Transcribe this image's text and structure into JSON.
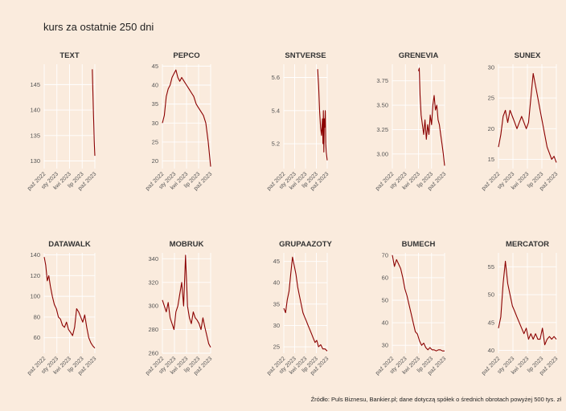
{
  "title": "kurs za ostatnie 250 dni",
  "caption": "Źródło: Puls Biznesu, Bankier.pl; dane dotyczą spółek o średnich obrotach powyżej 500 tys. zł",
  "colors": {
    "background": "#faebdd",
    "line": "#8b0000",
    "grid": "#ffffff"
  },
  "chart_data": [
    {
      "type": "line",
      "title": "TEXT",
      "ylim": [
        128.5,
        149
      ],
      "yticks": [
        130,
        135,
        140,
        145
      ],
      "ytick_labels": [
        "130",
        "135",
        "140",
        "145"
      ],
      "xticks": [
        "paź 2022",
        "sty 2023",
        "kwi 2023",
        "lip 2023",
        "paź 2023"
      ],
      "segment_x": [
        0.95,
        1.0
      ],
      "points": [
        [
          0,
          148
        ],
        [
          0.15,
          145
        ],
        [
          0.3,
          142
        ],
        [
          0.45,
          139
        ],
        [
          0.6,
          137
        ],
        [
          0.75,
          134
        ],
        [
          0.9,
          132
        ],
        [
          1.0,
          131
        ]
      ]
    },
    {
      "type": "line",
      "title": "PEPCO",
      "ylim": [
        18,
        45.5
      ],
      "yticks": [
        20,
        25,
        30,
        35,
        40,
        45
      ],
      "ytick_labels": [
        "20",
        "25",
        "30",
        "35",
        "40",
        "45"
      ],
      "xticks": [
        "paź 2022",
        "sty 2023",
        "kwi 2023",
        "lip 2023",
        "paź 2023"
      ],
      "segment_x": [
        0.0,
        1.0
      ],
      "points": [
        [
          0,
          30
        ],
        [
          0.04,
          32
        ],
        [
          0.08,
          37
        ],
        [
          0.12,
          39
        ],
        [
          0.16,
          40
        ],
        [
          0.2,
          42
        ],
        [
          0.24,
          43
        ],
        [
          0.28,
          44
        ],
        [
          0.32,
          42
        ],
        [
          0.36,
          41
        ],
        [
          0.4,
          42
        ],
        [
          0.45,
          41
        ],
        [
          0.5,
          40
        ],
        [
          0.55,
          39
        ],
        [
          0.6,
          38
        ],
        [
          0.65,
          37
        ],
        [
          0.7,
          35
        ],
        [
          0.75,
          34
        ],
        [
          0.8,
          33
        ],
        [
          0.85,
          32
        ],
        [
          0.9,
          30
        ],
        [
          0.95,
          25
        ],
        [
          1.0,
          18.5
        ]
      ]
    },
    {
      "type": "line",
      "title": "SNTVERSE",
      "ylim": [
        5.05,
        5.68
      ],
      "yticks": [
        5.2,
        5.4,
        5.6
      ],
      "ytick_labels": [
        "5.2",
        "5.4",
        "5.6"
      ],
      "xticks": [
        "paź 2022",
        "sty 2023",
        "kwi 2023",
        "lip 2023",
        "paź 2023"
      ],
      "segment_x": [
        0.78,
        1.0
      ],
      "points": [
        [
          0,
          5.65
        ],
        [
          0.1,
          5.55
        ],
        [
          0.2,
          5.4
        ],
        [
          0.3,
          5.3
        ],
        [
          0.4,
          5.25
        ],
        [
          0.5,
          5.35
        ],
        [
          0.55,
          5.2
        ],
        [
          0.6,
          5.4
        ],
        [
          0.65,
          5.15
        ],
        [
          0.7,
          5.35
        ],
        [
          0.75,
          5.3
        ],
        [
          0.8,
          5.4
        ],
        [
          0.85,
          5.2
        ],
        [
          0.9,
          5.15
        ],
        [
          1.0,
          5.1
        ]
      ]
    },
    {
      "type": "line",
      "title": "GRENEVIA",
      "ylim": [
        2.85,
        3.92
      ],
      "yticks": [
        3.0,
        3.25,
        3.5,
        3.75
      ],
      "ytick_labels": [
        "3.00",
        "3.25",
        "3.50",
        "3.75"
      ],
      "xticks": [
        "paź 2022",
        "sty 2023",
        "kwi 2023",
        "lip 2023",
        "paź 2023"
      ],
      "segment_x": [
        0.5,
        1.0
      ],
      "points": [
        [
          0,
          3.85
        ],
        [
          0.03,
          3.88
        ],
        [
          0.06,
          3.6
        ],
        [
          0.1,
          3.4
        ],
        [
          0.15,
          3.3
        ],
        [
          0.2,
          3.2
        ],
        [
          0.25,
          3.35
        ],
        [
          0.3,
          3.15
        ],
        [
          0.35,
          3.3
        ],
        [
          0.4,
          3.2
        ],
        [
          0.45,
          3.4
        ],
        [
          0.5,
          3.3
        ],
        [
          0.55,
          3.5
        ],
        [
          0.6,
          3.6
        ],
        [
          0.65,
          3.45
        ],
        [
          0.7,
          3.5
        ],
        [
          0.75,
          3.35
        ],
        [
          0.8,
          3.3
        ],
        [
          0.85,
          3.2
        ],
        [
          0.9,
          3.1
        ],
        [
          0.95,
          3.0
        ],
        [
          1.0,
          2.88
        ]
      ]
    },
    {
      "type": "line",
      "title": "SUNEX",
      "ylim": [
        13.5,
        30.5
      ],
      "yticks": [
        15,
        20,
        25,
        30
      ],
      "ytick_labels": [
        "15",
        "20",
        "25",
        "30"
      ],
      "xticks": [
        "paź 2022",
        "sty 2023",
        "kwi 2023",
        "lip 2023",
        "paź 2023"
      ],
      "segment_x": [
        0.0,
        1.0
      ],
      "points": [
        [
          0,
          17
        ],
        [
          0.04,
          19
        ],
        [
          0.08,
          22
        ],
        [
          0.12,
          23
        ],
        [
          0.16,
          21
        ],
        [
          0.2,
          23
        ],
        [
          0.24,
          22
        ],
        [
          0.28,
          21
        ],
        [
          0.32,
          20
        ],
        [
          0.36,
          21
        ],
        [
          0.4,
          22
        ],
        [
          0.44,
          21
        ],
        [
          0.48,
          20
        ],
        [
          0.52,
          21
        ],
        [
          0.56,
          25
        ],
        [
          0.6,
          29
        ],
        [
          0.64,
          27
        ],
        [
          0.68,
          25
        ],
        [
          0.72,
          23
        ],
        [
          0.76,
          21
        ],
        [
          0.8,
          19
        ],
        [
          0.84,
          17
        ],
        [
          0.88,
          16
        ],
        [
          0.92,
          15
        ],
        [
          0.96,
          15.5
        ],
        [
          1.0,
          14.5
        ]
      ]
    },
    {
      "type": "line",
      "title": "DATAWALK",
      "ylim": [
        45,
        142
      ],
      "yticks": [
        60,
        80,
        100,
        120,
        140
      ],
      "ytick_labels": [
        "60",
        "80",
        "100",
        "120",
        "140"
      ],
      "xticks": [
        "paź 2022",
        "sty 2023",
        "kwi 2023",
        "lip 2023",
        "paź 2023"
      ],
      "segment_x": [
        0.0,
        1.0
      ],
      "points": [
        [
          0,
          138
        ],
        [
          0.03,
          130
        ],
        [
          0.06,
          115
        ],
        [
          0.09,
          120
        ],
        [
          0.12,
          110
        ],
        [
          0.16,
          100
        ],
        [
          0.2,
          92
        ],
        [
          0.24,
          88
        ],
        [
          0.28,
          80
        ],
        [
          0.32,
          78
        ],
        [
          0.36,
          72
        ],
        [
          0.4,
          70
        ],
        [
          0.44,
          75
        ],
        [
          0.48,
          68
        ],
        [
          0.52,
          65
        ],
        [
          0.56,
          62
        ],
        [
          0.6,
          70
        ],
        [
          0.64,
          88
        ],
        [
          0.68,
          85
        ],
        [
          0.72,
          80
        ],
        [
          0.76,
          75
        ],
        [
          0.8,
          82
        ],
        [
          0.84,
          70
        ],
        [
          0.88,
          60
        ],
        [
          0.92,
          55
        ],
        [
          0.96,
          52
        ],
        [
          1.0,
          50
        ]
      ]
    },
    {
      "type": "line",
      "title": "MOBRUK",
      "ylim": [
        260,
        345
      ],
      "yticks": [
        260,
        280,
        300,
        320,
        340
      ],
      "ytick_labels": [
        "260",
        "280",
        "300",
        "320",
        "340"
      ],
      "xticks": [
        "paź 2022",
        "sty 2023",
        "kwi 2023",
        "lip 2023",
        "paź 2023"
      ],
      "segment_x": [
        0.0,
        1.0
      ],
      "points": [
        [
          0,
          305
        ],
        [
          0.04,
          300
        ],
        [
          0.08,
          295
        ],
        [
          0.12,
          303
        ],
        [
          0.16,
          290
        ],
        [
          0.2,
          285
        ],
        [
          0.24,
          280
        ],
        [
          0.28,
          295
        ],
        [
          0.32,
          300
        ],
        [
          0.36,
          310
        ],
        [
          0.4,
          320
        ],
        [
          0.44,
          300
        ],
        [
          0.48,
          343
        ],
        [
          0.52,
          300
        ],
        [
          0.56,
          290
        ],
        [
          0.6,
          285
        ],
        [
          0.64,
          295
        ],
        [
          0.68,
          290
        ],
        [
          0.72,
          288
        ],
        [
          0.76,
          285
        ],
        [
          0.8,
          280
        ],
        [
          0.84,
          290
        ],
        [
          0.88,
          282
        ],
        [
          0.92,
          275
        ],
        [
          0.96,
          268
        ],
        [
          1.0,
          265
        ]
      ]
    },
    {
      "type": "line",
      "title": "GRUPAAZOTY",
      "ylim": [
        23.5,
        47
      ],
      "yticks": [
        25,
        30,
        35,
        40,
        45
      ],
      "ytick_labels": [
        "25",
        "30",
        "35",
        "40",
        "45"
      ],
      "xticks": [
        "paź 2022",
        "sty 2023",
        "kwi 2023",
        "lip 2023",
        "paź 2023"
      ],
      "segment_x": [
        0.0,
        1.0
      ],
      "points": [
        [
          0,
          34
        ],
        [
          0.04,
          33
        ],
        [
          0.08,
          36
        ],
        [
          0.12,
          38
        ],
        [
          0.16,
          42
        ],
        [
          0.2,
          46
        ],
        [
          0.24,
          44
        ],
        [
          0.28,
          42
        ],
        [
          0.32,
          39
        ],
        [
          0.36,
          37
        ],
        [
          0.4,
          35
        ],
        [
          0.44,
          33
        ],
        [
          0.48,
          32
        ],
        [
          0.52,
          31
        ],
        [
          0.56,
          30
        ],
        [
          0.6,
          29
        ],
        [
          0.64,
          28
        ],
        [
          0.68,
          27
        ],
        [
          0.72,
          26
        ],
        [
          0.76,
          26.5
        ],
        [
          0.8,
          25
        ],
        [
          0.85,
          25.5
        ],
        [
          0.9,
          24.5
        ],
        [
          0.95,
          24.5
        ],
        [
          1.0,
          24
        ]
      ]
    },
    {
      "type": "line",
      "title": "BUMECH",
      "ylim": [
        26.5,
        71
      ],
      "yticks": [
        30,
        40,
        50,
        60,
        70
      ],
      "ytick_labels": [
        "30",
        "40",
        "50",
        "60",
        "70"
      ],
      "xticks": [
        "paź 2022",
        "sty 2023",
        "kwi 2023",
        "lip 2023",
        "paź 2023"
      ],
      "segment_x": [
        0.0,
        1.0
      ],
      "points": [
        [
          0,
          70
        ],
        [
          0.04,
          65
        ],
        [
          0.08,
          68
        ],
        [
          0.12,
          66
        ],
        [
          0.16,
          64
        ],
        [
          0.2,
          60
        ],
        [
          0.24,
          55
        ],
        [
          0.28,
          52
        ],
        [
          0.32,
          48
        ],
        [
          0.36,
          44
        ],
        [
          0.4,
          40
        ],
        [
          0.44,
          36
        ],
        [
          0.48,
          35
        ],
        [
          0.52,
          32
        ],
        [
          0.56,
          30
        ],
        [
          0.6,
          31
        ],
        [
          0.64,
          29
        ],
        [
          0.68,
          28
        ],
        [
          0.72,
          29
        ],
        [
          0.76,
          28
        ],
        [
          0.8,
          28
        ],
        [
          0.84,
          27.5
        ],
        [
          0.88,
          28
        ],
        [
          0.92,
          28
        ],
        [
          0.96,
          27.5
        ],
        [
          1.0,
          27.5
        ]
      ]
    },
    {
      "type": "line",
      "title": "MERCATOR",
      "ylim": [
        39.5,
        57.5
      ],
      "yticks": [
        40,
        45,
        50,
        55
      ],
      "ytick_labels": [
        "40",
        "45",
        "50",
        "55"
      ],
      "xticks": [
        "paź 2022",
        "sty 2023",
        "kwi 2023",
        "lip 2023",
        "paź 2023"
      ],
      "segment_x": [
        0.0,
        1.0
      ],
      "points": [
        [
          0,
          44
        ],
        [
          0.04,
          46
        ],
        [
          0.08,
          52
        ],
        [
          0.12,
          56
        ],
        [
          0.16,
          52
        ],
        [
          0.2,
          50
        ],
        [
          0.24,
          48
        ],
        [
          0.28,
          47
        ],
        [
          0.32,
          46
        ],
        [
          0.36,
          45
        ],
        [
          0.4,
          44
        ],
        [
          0.44,
          43
        ],
        [
          0.48,
          44
        ],
        [
          0.52,
          42
        ],
        [
          0.56,
          43
        ],
        [
          0.6,
          42
        ],
        [
          0.64,
          43
        ],
        [
          0.68,
          42
        ],
        [
          0.72,
          42
        ],
        [
          0.76,
          44
        ],
        [
          0.8,
          41
        ],
        [
          0.84,
          42
        ],
        [
          0.88,
          42.5
        ],
        [
          0.92,
          42
        ],
        [
          0.96,
          42.5
        ],
        [
          1.0,
          42
        ]
      ]
    }
  ]
}
